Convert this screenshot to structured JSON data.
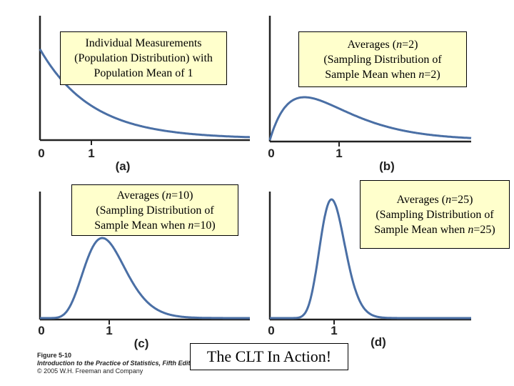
{
  "panels": [
    {
      "id": "a",
      "box_lines": [
        [
          {
            "t": "Individual Measurements",
            "i": false
          }
        ],
        [
          {
            "t": "(Population Distribution) with",
            "i": false
          }
        ],
        [
          {
            "t": "Population Mean of 1",
            "i": false
          }
        ]
      ],
      "tick0": "0",
      "tick1": "1",
      "label": "(a)"
    },
    {
      "id": "b",
      "box_lines": [
        [
          {
            "t": "Averages (",
            "i": false
          },
          {
            "t": "n",
            "i": true
          },
          {
            "t": "=2)",
            "i": false
          }
        ],
        [
          {
            "t": "(Sampling Distribution of",
            "i": false
          }
        ],
        [
          {
            "t": "Sample Mean when ",
            "i": false
          },
          {
            "t": "n",
            "i": true
          },
          {
            "t": "=2)",
            "i": false
          }
        ]
      ],
      "tick0": "0",
      "tick1": "1",
      "label": "(b)"
    },
    {
      "id": "c",
      "box_lines": [
        [
          {
            "t": "Averages (",
            "i": false
          },
          {
            "t": "n",
            "i": true
          },
          {
            "t": "=10)",
            "i": false
          }
        ],
        [
          {
            "t": "(Sampling Distribution of",
            "i": false
          }
        ],
        [
          {
            "t": "Sample Mean when ",
            "i": false
          },
          {
            "t": "n",
            "i": true
          },
          {
            "t": "=10)",
            "i": false
          }
        ]
      ],
      "tick0": "0",
      "tick1": "1",
      "label": "(c)"
    },
    {
      "id": "d",
      "box_lines": [
        [
          {
            "t": "Averages (",
            "i": false
          },
          {
            "t": "n",
            "i": true
          },
          {
            "t": "=25)",
            "i": false
          }
        ],
        [
          {
            "t": "(Sampling Distribution of",
            "i": false
          }
        ],
        [
          {
            "t": "Sample Mean when ",
            "i": false
          },
          {
            "t": "n",
            "i": true
          },
          {
            "t": "=25)",
            "i": false
          }
        ]
      ],
      "tick0": "0",
      "tick1": "1",
      "label": "(d)"
    }
  ],
  "caption": {
    "figure": "Figure 5-10",
    "book": "Introduction to the Practice of Statistics, Fifth Edition",
    "copyright": "© 2005 W.H. Freeman and Company"
  },
  "title_box": "The CLT In Action!",
  "colors": {
    "curve": "#4a6fa5",
    "axis": "#222222",
    "box_fill": "#ffffcc"
  }
}
